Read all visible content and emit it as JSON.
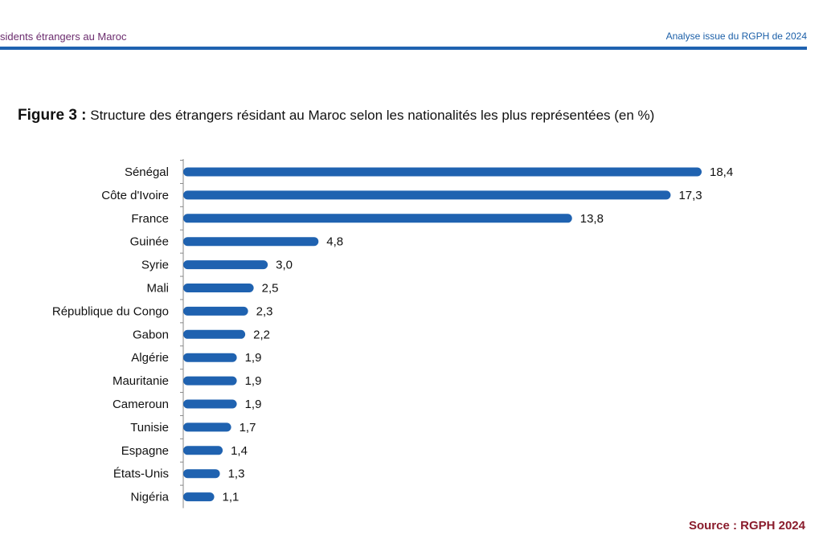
{
  "header": {
    "left": "sidents étrangers au Maroc",
    "right": "Analyse issue du RGPH de 2024",
    "accent_color": "#1f62b0"
  },
  "figure": {
    "label": "Figure 3 :",
    "title": "Structure des étrangers résidant au Maroc selon les nationalités les plus représentées (en %)"
  },
  "chart_data": {
    "type": "bar",
    "orientation": "horizontal",
    "categories": [
      "Sénégal",
      "Côte d'Ivoire",
      "France",
      "Guinée",
      "Syrie",
      "Mali",
      "République du Congo",
      "Gabon",
      "Algérie",
      "Mauritanie",
      "Cameroun",
      "Tunisie",
      "Espagne",
      "États-Unis",
      "Nigéria"
    ],
    "values": [
      18.4,
      17.3,
      13.8,
      4.8,
      3.0,
      2.5,
      2.3,
      2.2,
      1.9,
      1.9,
      1.9,
      1.7,
      1.4,
      1.3,
      1.1
    ],
    "value_labels": [
      "18,4",
      "17,3",
      "13,8",
      "4,8",
      "3,0",
      "2,5",
      "2,3",
      "2,2",
      "1,9",
      "1,9",
      "1,9",
      "1,7",
      "1,4",
      "1,3",
      "1,1"
    ],
    "bar_color": "#1f62b0",
    "grid": false
  },
  "source": "Source : RGPH 2024"
}
